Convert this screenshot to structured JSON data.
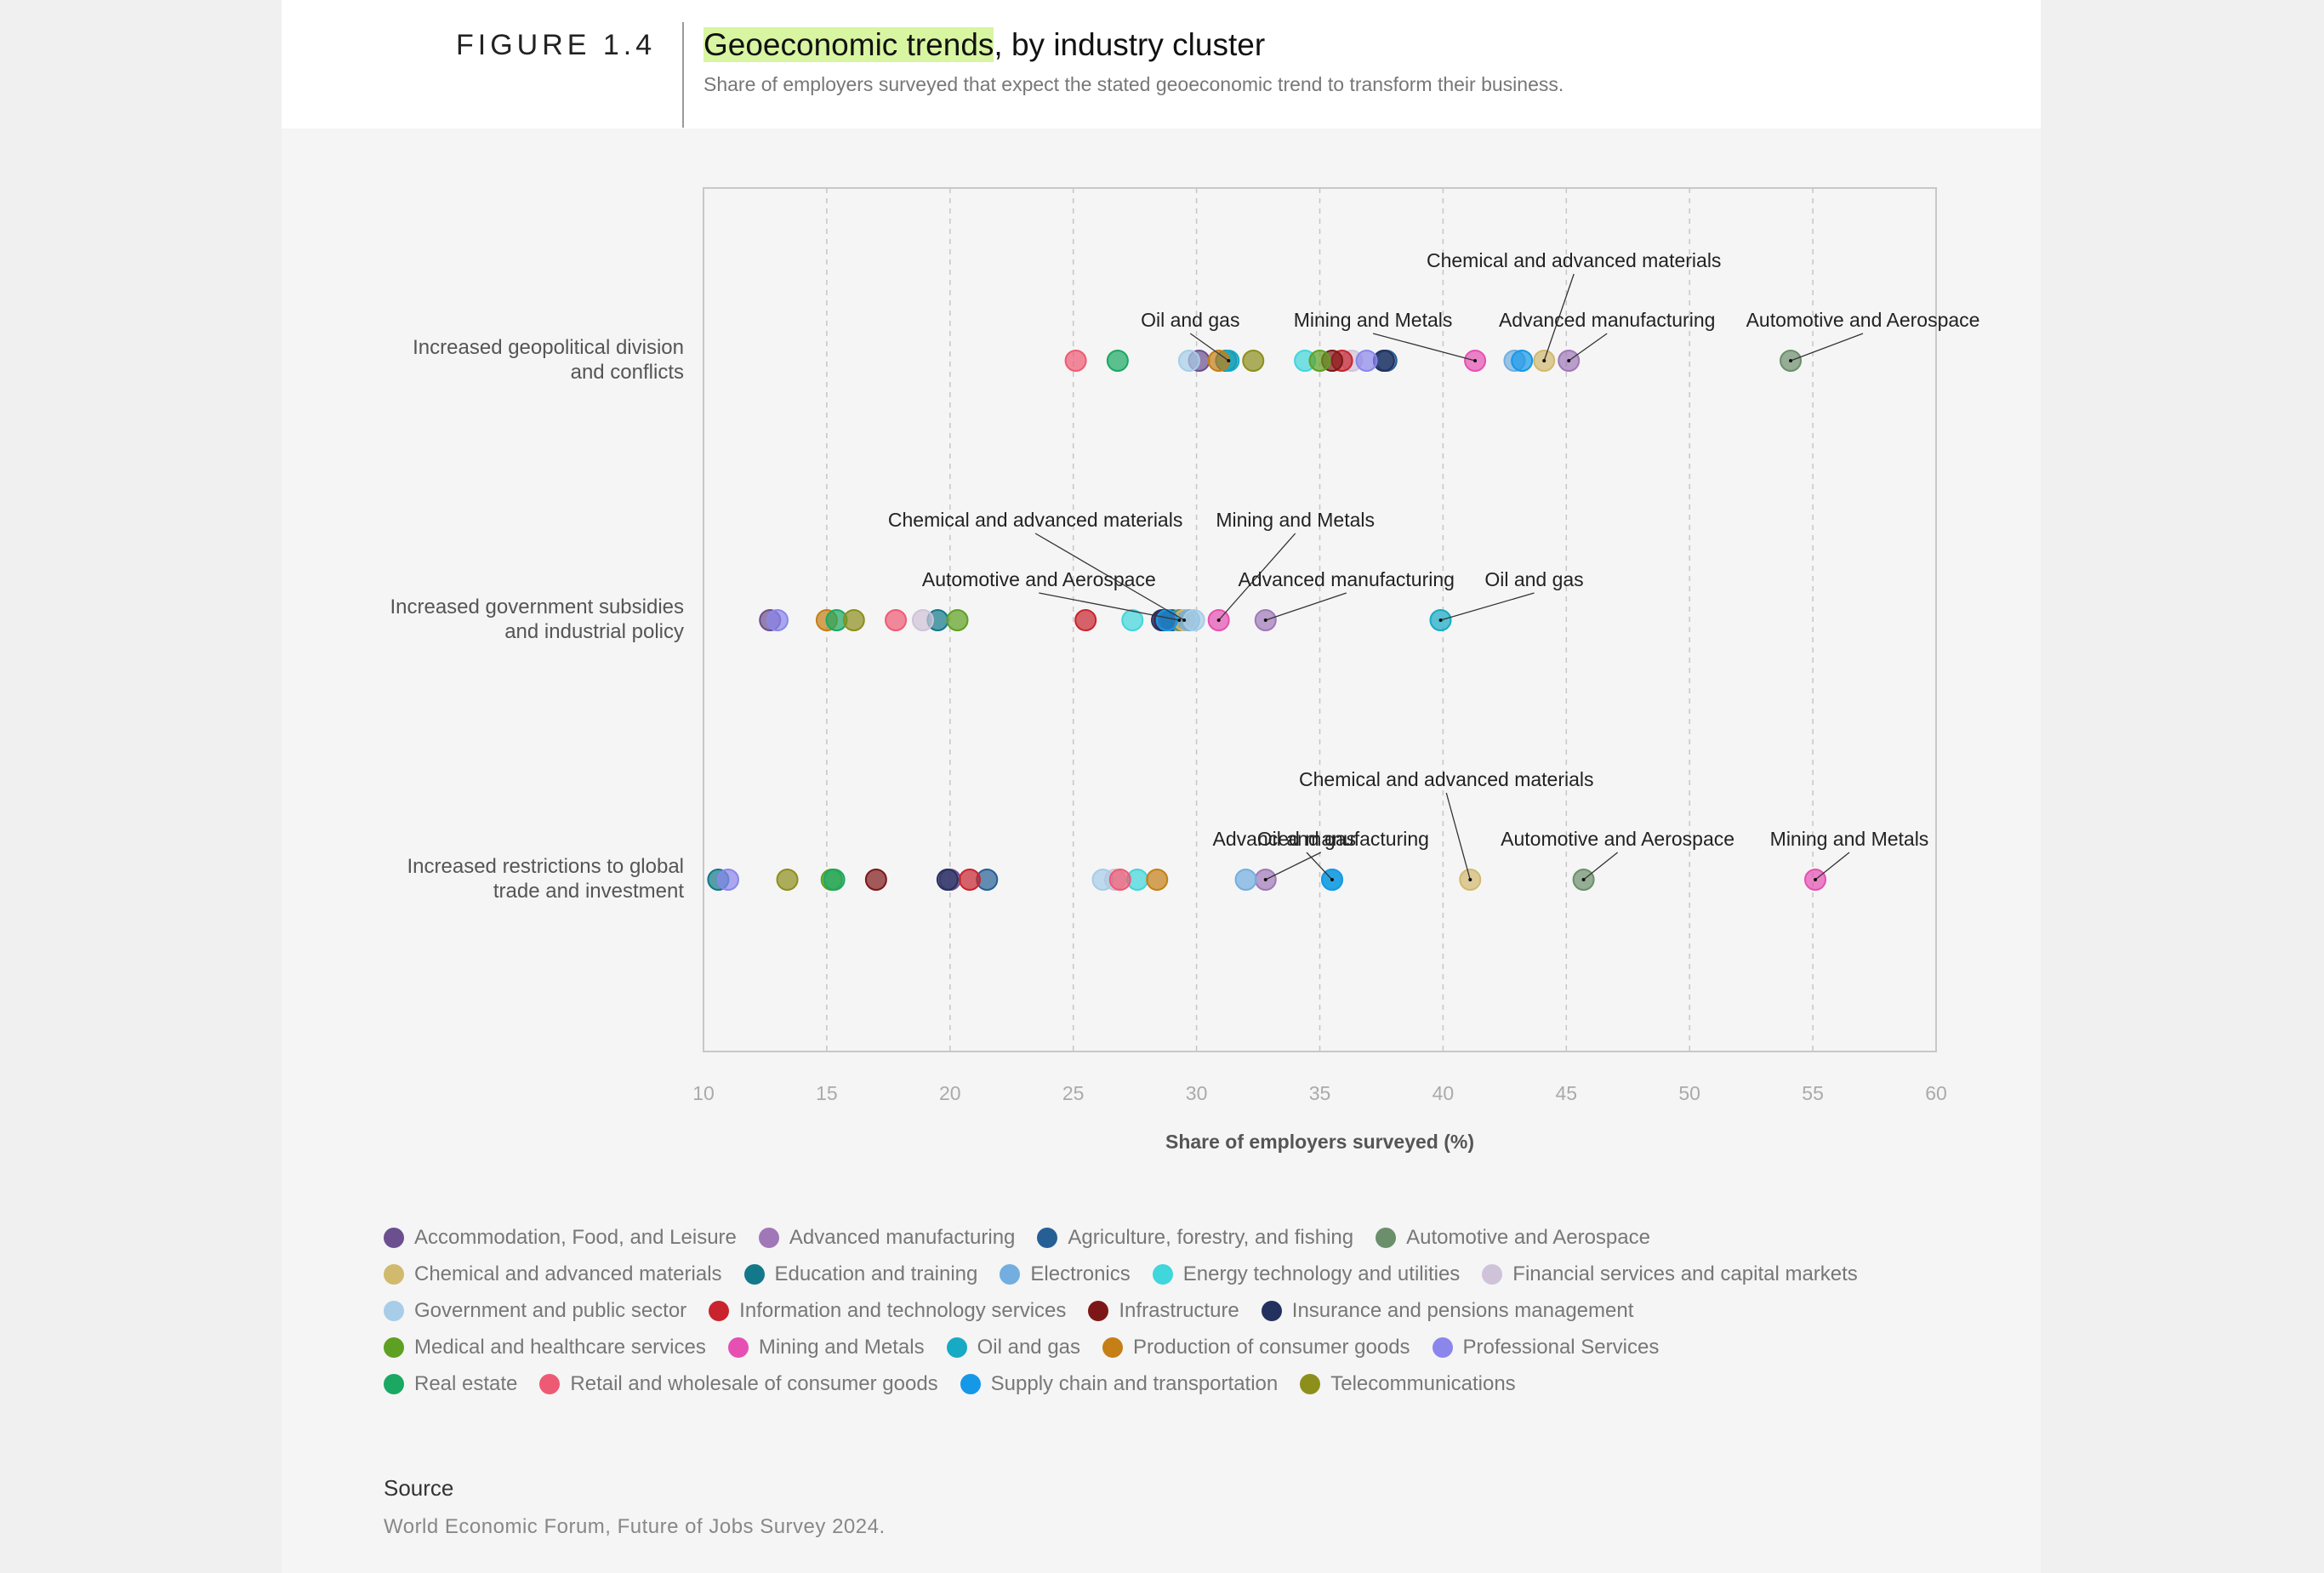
{
  "header": {
    "figure_label": "FIGURE 1.4",
    "title_highlight": "Geoeconomic trends",
    "title_rest": ", by industry cluster",
    "subtitle": "Share of employers surveyed that expect the stated geoeconomic trend to transform their business."
  },
  "chart_data": {
    "type": "scatter",
    "xlabel": "Share of employers surveyed (%)",
    "xlim": [
      10,
      60
    ],
    "xticks": [
      10,
      15,
      20,
      25,
      30,
      35,
      40,
      45,
      50,
      55,
      60
    ],
    "grid": "vertical dashed",
    "legend_position": "bottom",
    "categories": [
      "Increased geopolitical division\nand conflicts",
      "Increased government subsidies\nand industrial policy",
      "Increased restrictions to global\ntrade and investment"
    ],
    "series": [
      {
        "name": "Accommodation, Food, and Leisure",
        "color": "#6b4f8f",
        "values": [
          30.1,
          12.7,
          20.0
        ]
      },
      {
        "name": "Advanced manufacturing",
        "color": "#a078b8",
        "values": [
          45.1,
          32.8,
          32.8
        ]
      },
      {
        "name": "Agriculture, forestry, and fishing",
        "color": "#265f96",
        "values": [
          37.7,
          29.0,
          21.5
        ]
      },
      {
        "name": "Automotive and Aerospace",
        "color": "#6b8f6b",
        "values": [
          54.1,
          29.3,
          45.7
        ]
      },
      {
        "name": "Chemical and advanced materials",
        "color": "#d1b96e",
        "values": [
          44.1,
          29.5,
          41.1
        ]
      },
      {
        "name": "Education and training",
        "color": "#13788a",
        "values": [
          31.2,
          19.5,
          10.6
        ]
      },
      {
        "name": "Electronics",
        "color": "#72aee0",
        "values": [
          42.9,
          29.7,
          32.0
        ]
      },
      {
        "name": "Energy technology and utilities",
        "color": "#3fd6dc",
        "values": [
          34.4,
          27.4,
          27.6
        ]
      },
      {
        "name": "Financial services and capital markets",
        "color": "#cfc3d9",
        "values": [
          36.3,
          18.9,
          26.7
        ]
      },
      {
        "name": "Government and public sector",
        "color": "#a7cde8",
        "values": [
          29.7,
          29.9,
          26.2
        ]
      },
      {
        "name": "Information and technology services",
        "color": "#c9232d",
        "values": [
          35.9,
          25.5,
          20.8
        ]
      },
      {
        "name": "Infrastructure",
        "color": "#7d1717",
        "values": [
          35.5,
          28.7,
          17.0
        ]
      },
      {
        "name": "Insurance and pensions management",
        "color": "#24305e",
        "values": [
          37.6,
          28.6,
          19.9
        ]
      },
      {
        "name": "Medical and healthcare services",
        "color": "#5ea021",
        "values": [
          35.0,
          20.3,
          15.2
        ]
      },
      {
        "name": "Mining and Metals",
        "color": "#e650b2",
        "values": [
          41.3,
          30.9,
          55.1
        ]
      },
      {
        "name": "Oil and gas",
        "color": "#16aac4",
        "values": [
          31.3,
          39.9,
          35.5
        ]
      },
      {
        "name": "Production of consumer goods",
        "color": "#c57f16",
        "values": [
          30.9,
          15.0,
          28.4
        ]
      },
      {
        "name": "Professional Services",
        "color": "#8a86ec",
        "values": [
          36.9,
          13.0,
          11.0
        ]
      },
      {
        "name": "Real estate",
        "color": "#1aa862",
        "values": [
          26.8,
          15.4,
          15.3
        ]
      },
      {
        "name": "Retail and wholesale of consumer goods",
        "color": "#ee5a73",
        "values": [
          25.1,
          17.8,
          26.9
        ]
      },
      {
        "name": "Supply chain and transportation",
        "color": "#1598e8",
        "values": [
          43.2,
          28.8,
          35.5
        ]
      },
      {
        "name": "Telecommunications",
        "color": "#8d8f1b",
        "values": [
          32.3,
          16.1,
          13.4
        ]
      }
    ],
    "annotations": [
      {
        "row": 0,
        "series": "Oil and gas",
        "text": "Oil and gas"
      },
      {
        "row": 0,
        "series": "Mining and Metals",
        "text": "Mining and Metals"
      },
      {
        "row": 0,
        "series": "Chemical and advanced materials",
        "text": "Chemical and advanced materials"
      },
      {
        "row": 0,
        "series": "Advanced manufacturing",
        "text": "Advanced manufacturing"
      },
      {
        "row": 0,
        "series": "Automotive and Aerospace",
        "text": "Automotive and Aerospace"
      },
      {
        "row": 1,
        "series": "Chemical and advanced materials",
        "text": "Chemical and advanced materials"
      },
      {
        "row": 1,
        "series": "Mining and Metals",
        "text": "Mining and Metals"
      },
      {
        "row": 1,
        "series": "Automotive and Aerospace",
        "text": "Automotive and Aerospace"
      },
      {
        "row": 1,
        "series": "Advanced manufacturing",
        "text": "Advanced manufacturing"
      },
      {
        "row": 1,
        "series": "Oil and gas",
        "text": "Oil and gas"
      },
      {
        "row": 2,
        "series": "Chemical and advanced materials",
        "text": "Chemical and advanced materials"
      },
      {
        "row": 2,
        "series": "Oil and gas",
        "text": "Oil and gas"
      },
      {
        "row": 2,
        "series": "Advanced manufacturing",
        "text": "Advanced manufacturing"
      },
      {
        "row": 2,
        "series": "Automotive and Aerospace",
        "text": "Automotive and Aerospace"
      },
      {
        "row": 2,
        "series": "Mining and Metals",
        "text": "Mining and Metals"
      }
    ]
  },
  "source": {
    "heading": "Source",
    "text": "World Economic Forum, Future of Jobs Survey 2024."
  }
}
